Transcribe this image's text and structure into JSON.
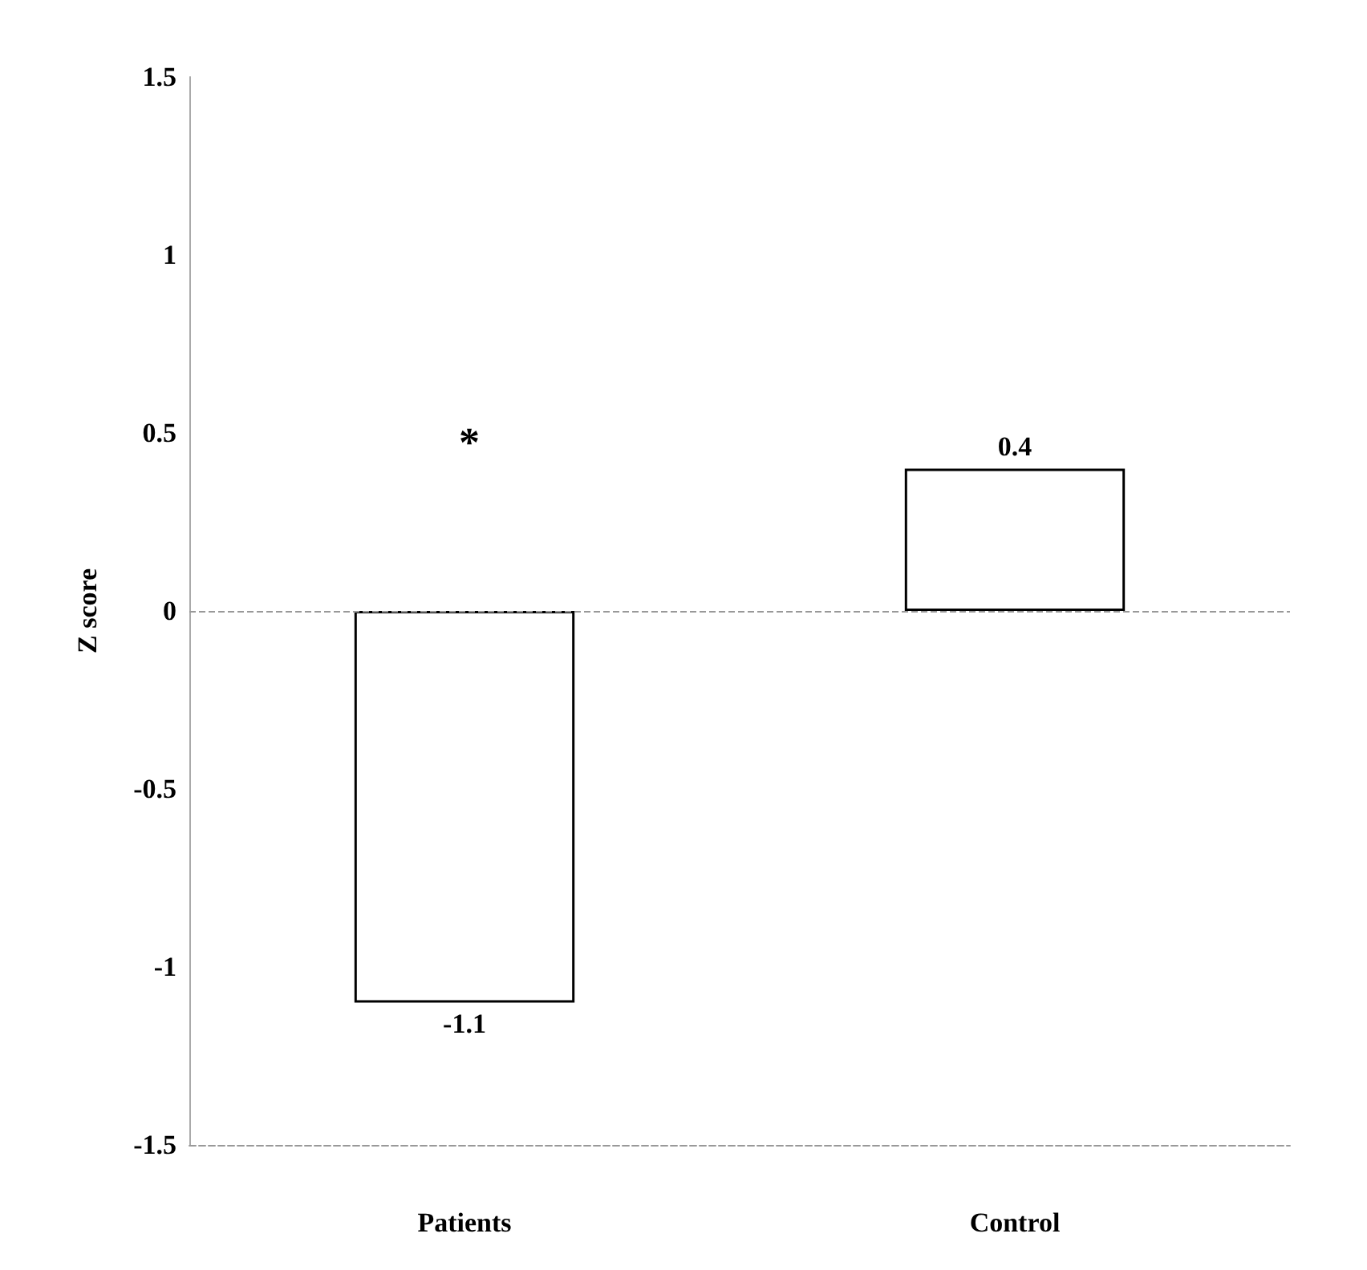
{
  "chart_data": {
    "type": "bar",
    "ylabel": "Z score",
    "categories": [
      "Patients",
      "Control"
    ],
    "values": [
      -1.1,
      0.4
    ],
    "color": "#ffffff",
    "ylim": [
      -1.5,
      1.5
    ],
    "yticks": [
      -1.5,
      -1,
      -0.5,
      0,
      0.5,
      1,
      1.5
    ],
    "data_labels": true,
    "grid": false,
    "ref_lines": [
      {
        "axis": "y",
        "value": 0,
        "color": "#999999",
        "line_style": "dashed"
      }
    ],
    "annotations": [
      "*"
    ]
  }
}
